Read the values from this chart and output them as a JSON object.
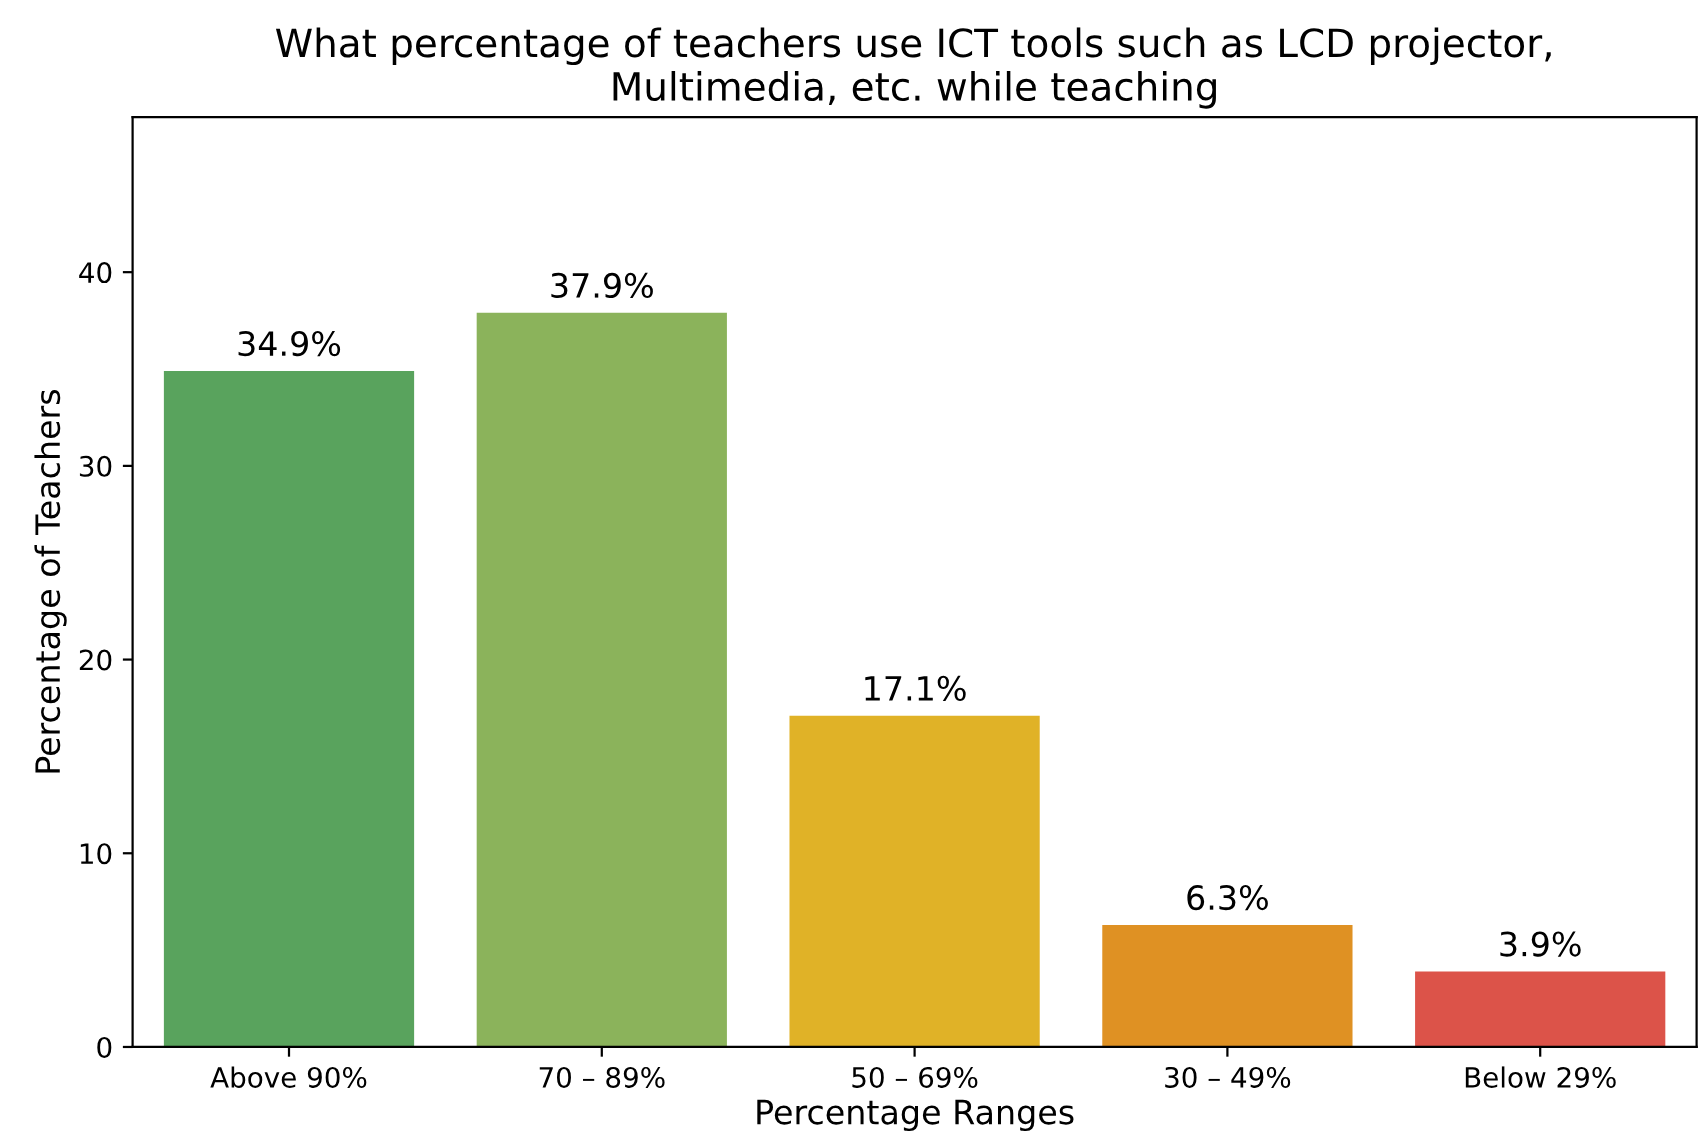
{
  "chart_data": {
    "type": "bar",
    "title": "What percentage of teachers use ICT tools such as LCD projector,\nMultimedia, etc. while teaching",
    "xlabel": "Percentage Ranges",
    "ylabel": "Percentage of Teachers",
    "categories": [
      "Above 90%",
      "70 – 89%",
      "50 – 69%",
      "30 – 49%",
      "Below 29%"
    ],
    "values": [
      34.9,
      37.9,
      17.1,
      6.3,
      3.9
    ],
    "colors": [
      "#59a35d",
      "#8bb35b",
      "#e0b227",
      "#df9123",
      "#dc5349"
    ],
    "value_labels": [
      "34.9%",
      "37.9%",
      "17.1%",
      "6.3%",
      "3.9%"
    ],
    "ylim": [
      0,
      48
    ],
    "yticks": [
      0,
      10,
      20,
      30,
      40
    ],
    "grid": false,
    "legend": false
  }
}
